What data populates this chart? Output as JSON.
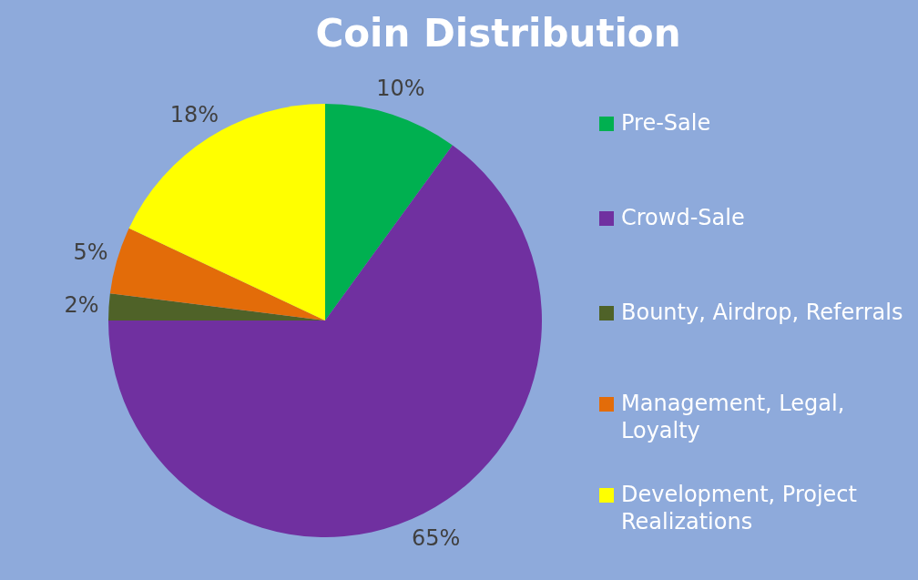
{
  "chart_data": {
    "type": "pie",
    "title": "Coin Distribution",
    "categories": [
      "Pre-Sale",
      "Crowd-Sale",
      "Bounty, Airdrop, Referrals",
      "Management, Legal, Loyalty",
      "Development, Project Realizations"
    ],
    "values": [
      10,
      65,
      2,
      5,
      18
    ],
    "value_labels": [
      "10%",
      "65%",
      "2%",
      "5%",
      "18%"
    ],
    "colors": [
      "#00b050",
      "#7030a0",
      "#4f6228",
      "#e36c09",
      "#ffff00"
    ],
    "legend": "right"
  }
}
